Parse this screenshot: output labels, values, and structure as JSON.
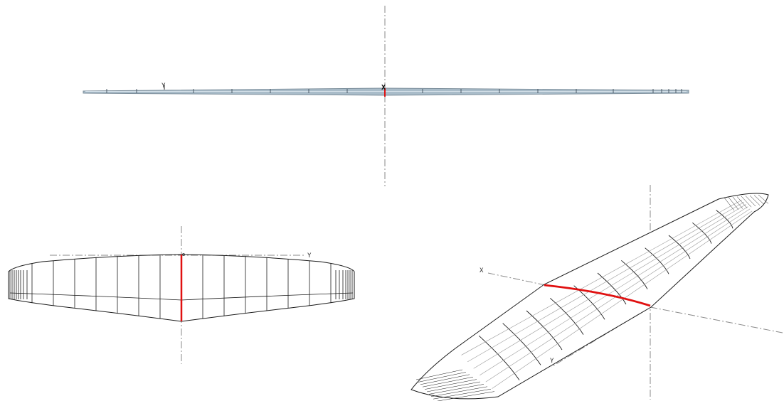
{
  "views": {
    "front": {
      "axis_labels": {
        "y": "Y",
        "x": "X"
      }
    },
    "top": {
      "axis_labels": {
        "y": "Y"
      }
    },
    "iso": {
      "axis_labels": {
        "x": "X",
        "y": "Y"
      }
    }
  },
  "colors": {
    "wire": "#1a1a1a",
    "wire_light": "#9a9a9a",
    "highlight": "#e01010",
    "axis": "#8a8a8a",
    "wing_fill": "#a9bcc9"
  }
}
